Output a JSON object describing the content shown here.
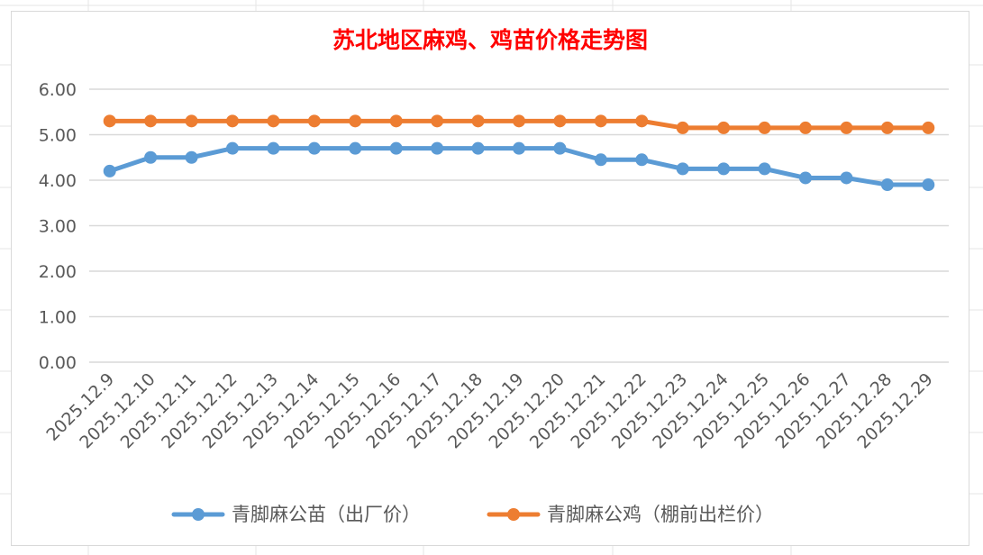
{
  "chart_data": {
    "type": "line",
    "title": "苏北地区麻鸡、鸡苗价格走势图",
    "categories": [
      "2025.12.9",
      "2025.12.10",
      "2025.12.11",
      "2025.12.12",
      "2025.12.13",
      "2025.12.14",
      "2025.12.15",
      "2025.12.16",
      "2025.12.17",
      "2025.12.18",
      "2025.12.19",
      "2025.12.20",
      "2025.12.21",
      "2025.12.22",
      "2025.12.23",
      "2025.12.24",
      "2025.12.25",
      "2025.12.26",
      "2025.12.27",
      "2025.12.28",
      "2025.12.29"
    ],
    "series": [
      {
        "name": "青脚麻公苗（出厂价）",
        "color": "#5b9bd5",
        "values": [
          4.2,
          4.5,
          4.5,
          4.7,
          4.7,
          4.7,
          4.7,
          4.7,
          4.7,
          4.7,
          4.7,
          4.7,
          4.45,
          4.45,
          4.25,
          4.25,
          4.25,
          4.05,
          4.05,
          3.9,
          3.9
        ]
      },
      {
        "name": "青脚麻公鸡（棚前出栏价）",
        "color": "#ed7d31",
        "values": [
          5.3,
          5.3,
          5.3,
          5.3,
          5.3,
          5.3,
          5.3,
          5.3,
          5.3,
          5.3,
          5.3,
          5.3,
          5.3,
          5.3,
          5.15,
          5.15,
          5.15,
          5.15,
          5.15,
          5.15,
          5.15
        ]
      }
    ],
    "ylim": [
      0,
      6
    ],
    "yticks": [
      "0.00",
      "1.00",
      "2.00",
      "3.00",
      "4.00",
      "5.00",
      "6.00"
    ],
    "grid": true,
    "legend": "bottom"
  }
}
